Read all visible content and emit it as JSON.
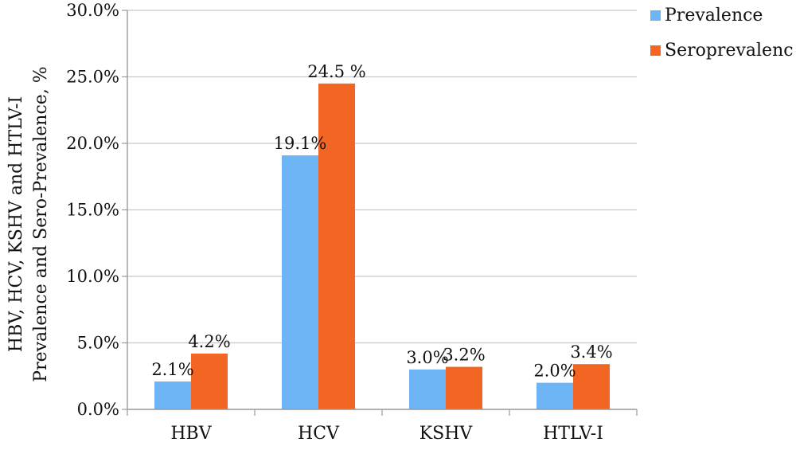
{
  "chart_data": {
    "type": "bar",
    "categories": [
      "HBV",
      "HCV",
      "KSHV",
      "HTLV-I"
    ],
    "series": [
      {
        "name": "Prevalence",
        "values": [
          2.1,
          19.1,
          3.0,
          2.0
        ],
        "labels": [
          "2.1%",
          "19.1%",
          "3.0%",
          "2.0%"
        ],
        "color": "#6EB5F5"
      },
      {
        "name": "Seroprevalenc",
        "values": [
          4.2,
          24.5,
          3.2,
          3.4
        ],
        "labels": [
          "4.2%",
          "24.5 %",
          "3.2%",
          "3.4%"
        ],
        "color": "#F26522"
      }
    ],
    "ylabel_lines": [
      "HBV, HCV, KSHV and HTLV-I",
      "Prevalence and Sero-Prevalence, %"
    ],
    "xlabel": "",
    "ylim": [
      0,
      30
    ],
    "yticks": [
      0,
      5,
      10,
      15,
      20,
      25,
      30
    ],
    "ytick_labels": [
      "0.0%",
      "5.0%",
      "10.0%",
      "15.0%",
      "20.0%",
      "25.0%",
      "30.0%"
    ],
    "grid": true,
    "legend_position": "top-right"
  }
}
